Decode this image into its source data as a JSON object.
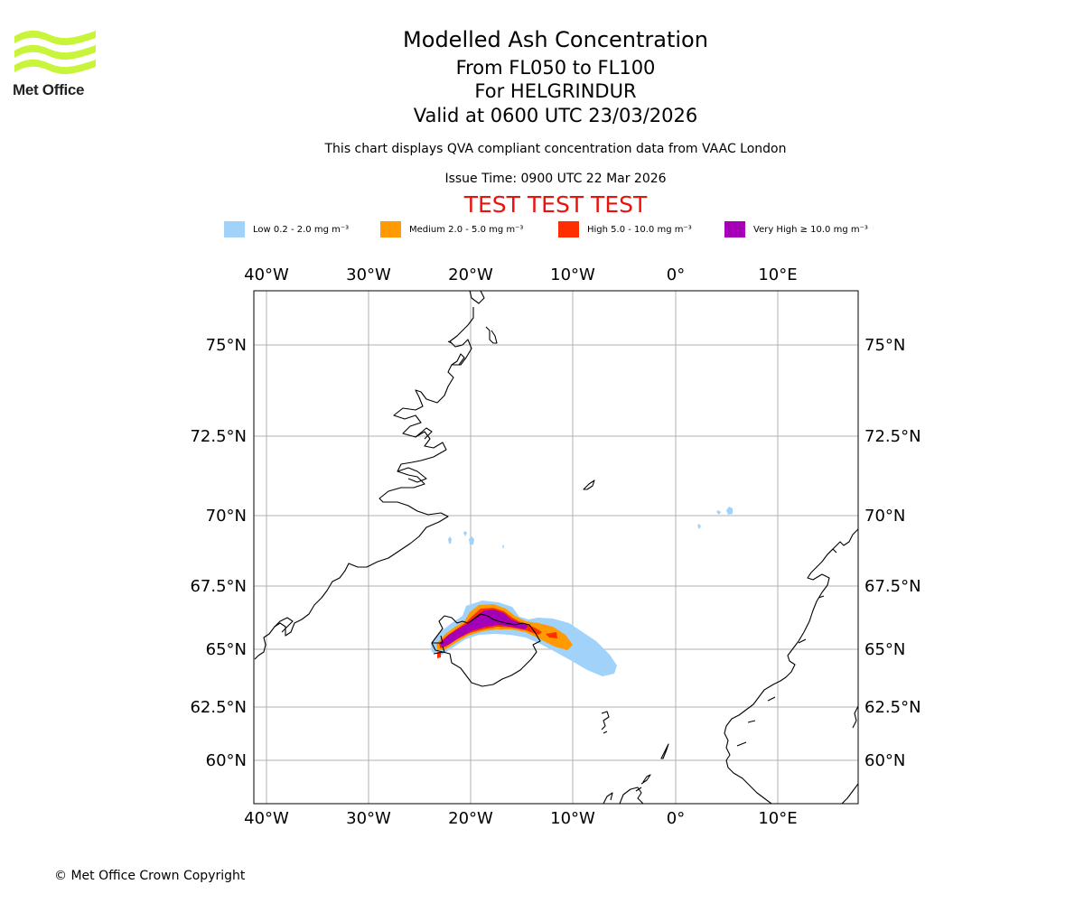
{
  "branding": {
    "logo_text": "Met Office"
  },
  "header": {
    "title": "Modelled Ash Concentration",
    "flight_levels": "From FL050 to FL100",
    "volcano": "For HELGRINDUR",
    "valid_time": "Valid at 0600 UTC 23/03/2026",
    "description": "This chart displays QVA compliant concentration data from VAAC London",
    "issue_time": "Issue Time: 0900 UTC 22 Mar 2026",
    "test_banner": "TEST TEST TEST"
  },
  "legend": [
    {
      "label": "Low 0.2 - 2.0 mg m⁻³",
      "color": "#a0d2fa"
    },
    {
      "label": "Medium 2.0 - 5.0 mg m⁻³",
      "color": "#ff9a00"
    },
    {
      "label": "High 5.0 - 10.0 mg m⁻³",
      "color": "#ff2e00"
    },
    {
      "label": "Very High ≥ 10.0 mg m⁻³",
      "color": "#a500b5"
    }
  ],
  "map": {
    "lon_ticks": [
      "40°W",
      "30°W",
      "20°W",
      "10°W",
      "0°",
      "10°E"
    ],
    "lat_ticks": [
      "75°N",
      "72.5°N",
      "70°N",
      "67.5°N",
      "65°N",
      "62.5°N",
      "60°N"
    ],
    "gridline_color": "#b0b0b0",
    "coastline_color": "#000000"
  },
  "footer": {
    "copyright": "© Met Office Crown Copyright"
  }
}
